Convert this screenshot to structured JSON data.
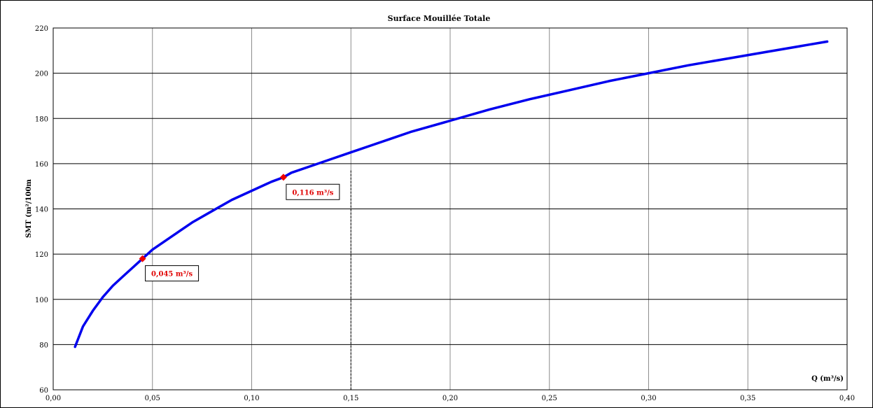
{
  "chart_data": {
    "type": "line",
    "title": "Surface Mouillée Totale",
    "xlabel": "Q (m³/s)",
    "ylabel": "SMT (m²/100m",
    "xlim": [
      0.0,
      0.4
    ],
    "ylim": [
      60,
      220
    ],
    "x_ticks": [
      "0,00",
      "0,05",
      "0,10",
      "0,15",
      "0,20",
      "0,25",
      "0,30",
      "0,35",
      "0,40"
    ],
    "y_ticks": [
      "60",
      "80",
      "100",
      "120",
      "140",
      "160",
      "180",
      "200",
      "220"
    ],
    "grid": true,
    "legend": "none",
    "series": [
      {
        "color": "#0000ee",
        "x": [
          0.011,
          0.015,
          0.02,
          0.025,
          0.03,
          0.035,
          0.04,
          0.045,
          0.05,
          0.06,
          0.07,
          0.08,
          0.09,
          0.1,
          0.11,
          0.116,
          0.12,
          0.13,
          0.14,
          0.15,
          0.16,
          0.17,
          0.18,
          0.19,
          0.2,
          0.22,
          0.24,
          0.26,
          0.28,
          0.3,
          0.32,
          0.34,
          0.36,
          0.38,
          0.39
        ],
        "y": [
          79,
          88,
          95,
          101,
          106,
          110,
          114,
          118,
          122,
          128,
          134,
          139,
          144,
          148,
          152,
          154,
          156,
          159,
          162,
          165,
          168,
          171,
          174,
          176.5,
          179,
          184,
          188.5,
          192.5,
          196.5,
          200,
          203.5,
          206.5,
          209.5,
          212.5,
          214
        ]
      }
    ],
    "points": [
      {
        "x": 0.045,
        "y": 118,
        "label": "0,045 m³/s",
        "color": "#ee0000"
      },
      {
        "x": 0.116,
        "y": 154,
        "label": "0,116 m³/s",
        "color": "#ee0000"
      }
    ],
    "reference_line": {
      "x": 0.15
    }
  }
}
